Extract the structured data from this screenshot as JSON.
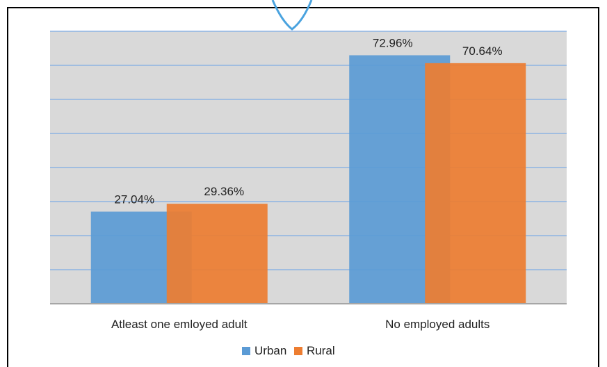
{
  "chart_data": {
    "type": "bar",
    "categories": [
      "Atleast one emloyed adult",
      "No employed adults"
    ],
    "series": [
      {
        "name": "Urban",
        "values": [
          27.04,
          72.96
        ],
        "labels": [
          "27.04%",
          "72.96%"
        ],
        "color": "#5B9BD5"
      },
      {
        "name": "Rural",
        "values": [
          29.36,
          70.64
        ],
        "labels": [
          "29.36%",
          "70.64%"
        ],
        "color": "#ED7D31"
      }
    ],
    "ylim": [
      0,
      80
    ],
    "grid": true,
    "legend_position": "bottom",
    "plot_background": "#D9D9D9",
    "gridline_color": "#8DB4E2",
    "title": "",
    "xlabel": "",
    "ylabel": ""
  }
}
